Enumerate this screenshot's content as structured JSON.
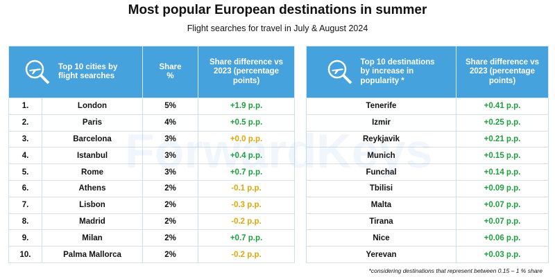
{
  "header": {
    "title": "Most popular European destinations in summer",
    "subtitle": "Flight searches for travel in July & August 2024"
  },
  "watermark": "ForwardKeys",
  "left_table": {
    "columns": [
      "Top 10 cities by flight searches",
      "Share %",
      "Share difference vs 2023 (percentage points)"
    ],
    "rows": [
      [
        "1.",
        "London",
        "5%",
        "+1.9 p.p."
      ],
      [
        "2.",
        "Paris",
        "4%",
        "+0.5 p.p."
      ],
      [
        "3.",
        "Barcelona",
        "3%",
        "+0.0 p.p."
      ],
      [
        "4.",
        "Istanbul",
        "3%",
        "+0.4 p.p."
      ],
      [
        "5.",
        "Rome",
        "3%",
        "+0.7 p.p."
      ],
      [
        "6.",
        "Athens",
        "2%",
        "-0.1 p.p."
      ],
      [
        "7.",
        "Lisbon",
        "2%",
        "-0.3 p.p."
      ],
      [
        "8.",
        "Madrid",
        "2%",
        "-0.2 p.p."
      ],
      [
        "9.",
        "Milan",
        "2%",
        "+0.7 p.p."
      ],
      [
        "10.",
        "Palma Mallorca",
        "2%",
        "-0.2 p.p."
      ]
    ]
  },
  "right_table": {
    "columns": [
      "Top 10 destinations by increase in popularity *",
      "Share difference vs 2023 (percentage points)"
    ],
    "rows": [
      [
        "Tenerife",
        "+0.41 p.p."
      ],
      [
        "Izmir",
        "+0.25 p.p."
      ],
      [
        "Reykjavik",
        "+0.21 p.p."
      ],
      [
        "Munich",
        "+0.15 p.p."
      ],
      [
        "Funchal",
        "+0.14 p.p."
      ],
      [
        "Tbilisi",
        "+0.09 p.p."
      ],
      [
        "Malta",
        "+0.07 p.p."
      ],
      [
        "Tirana",
        "+0.07 p.p."
      ],
      [
        "Nice",
        "+0.06 p.p."
      ],
      [
        "Yerevan",
        "+0.03 p.p."
      ]
    ]
  },
  "footnote": "*considering destinations that represent between 0.15 – 1 % share"
}
